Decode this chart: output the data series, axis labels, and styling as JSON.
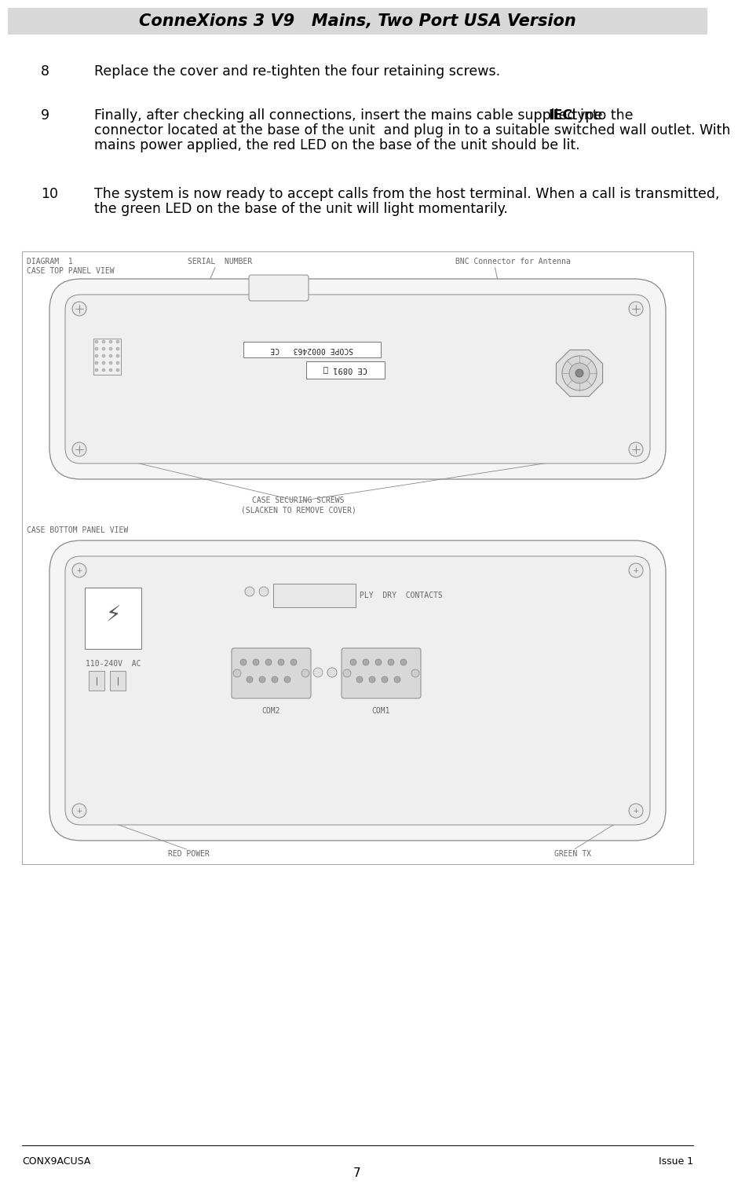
{
  "title": "ConneXions 3 V9   Mains, Two Port USA Version",
  "header_bg": "#d8d8d8",
  "page_bg": "#ffffff",
  "item8_num": "8",
  "item8_text": "Replace the cover and re-tighten the four retaining screws.",
  "item9_num": "9",
  "item9_pre_bold": "Finally, after checking all connections, insert the mains cable supplied into the ",
  "item9_bold": "IEC",
  "item9_post_bold": " type",
  "item9_line2": "connector located at the base of the unit  and plug in to a suitable switched wall outlet. With",
  "item9_line3": "mains power applied, the red LED on the base of the unit should be lit.",
  "item10_num": "10",
  "item10_line1": "The system is now ready to accept calls from the host terminal. When a call is transmitted,",
  "item10_line2": "the green LED on the base of the unit will light momentarily.",
  "footer_left": "CONX9ACUSA",
  "footer_right": "Issue 1",
  "footer_center": "7",
  "lc": "#888888",
  "dc": "#666666",
  "body_text_color": "#000000",
  "body_font_size": 12.5,
  "title_font_size": 15,
  "footer_font_size": 9,
  "diag_font_size": 7,
  "diag_text_color": "#666666"
}
